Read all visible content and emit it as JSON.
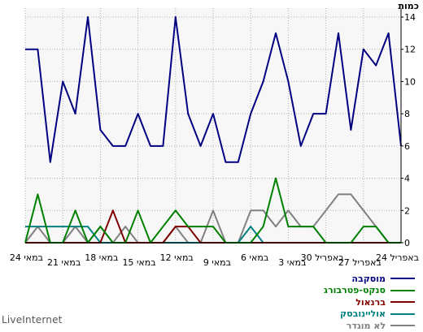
{
  "brand": "LiveInternet",
  "chart_data": {
    "type": "line",
    "title": "",
    "ylabel": "כמות",
    "xlabel": "",
    "ylim": [
      0,
      14
    ],
    "yticks": [
      0,
      2,
      4,
      6,
      8,
      10,
      12,
      14
    ],
    "grid": true,
    "legend_position": "bottom-right",
    "x_tick_labels": [
      "24 באפריל",
      "27 באפריל",
      "30 באפריל",
      "3 במאי",
      "6 במאי",
      "9 במאי",
      "12 במאי",
      "15 במאי",
      "18 במאי",
      "21 במאי",
      "24 במאי"
    ],
    "series": [
      {
        "name": "מוסקבה",
        "color": "#000080",
        "values": [
          6,
          13,
          11,
          12,
          7,
          13,
          8,
          8,
          6,
          10,
          13,
          10,
          8,
          5,
          5,
          8,
          6,
          8,
          14,
          6,
          6,
          8,
          6,
          6,
          7,
          14,
          8,
          10,
          5,
          12,
          12
        ]
      },
      {
        "name": "סנקט-פטרבורג",
        "color": "#008000",
        "values": [
          0,
          0,
          1,
          1,
          0,
          0,
          0,
          1,
          1,
          1,
          4,
          1,
          0,
          0,
          0,
          1,
          1,
          1,
          2,
          1,
          0,
          2,
          0,
          0,
          1,
          0,
          2,
          0,
          0,
          3,
          0
        ]
      },
      {
        "name": "ברנאול",
        "color": "#800000",
        "values": [
          0,
          0,
          0,
          0,
          0,
          0,
          0,
          0,
          0,
          0,
          0,
          0,
          0,
          0,
          0,
          0,
          0,
          1,
          1,
          0,
          0,
          0,
          0,
          2,
          0,
          0,
          0,
          0,
          0,
          0,
          0
        ]
      },
      {
        "name": "אוליינובסק",
        "color": "#008080",
        "values": [
          0,
          0,
          0,
          0,
          0,
          0,
          0,
          0,
          0,
          0,
          0,
          0,
          1,
          0,
          0,
          0,
          0,
          0,
          0,
          0,
          0,
          0,
          0,
          0,
          0,
          1,
          1,
          1,
          1,
          1,
          1
        ]
      },
      {
        "name": "לא מוגדר",
        "color": "#808080",
        "values": [
          0,
          0,
          1,
          2,
          3,
          3,
          2,
          1,
          1,
          2,
          1,
          2,
          2,
          0,
          0,
          2,
          0,
          0,
          1,
          0,
          0,
          0,
          1,
          0,
          1,
          0,
          1,
          0,
          0,
          1,
          0
        ]
      }
    ]
  }
}
